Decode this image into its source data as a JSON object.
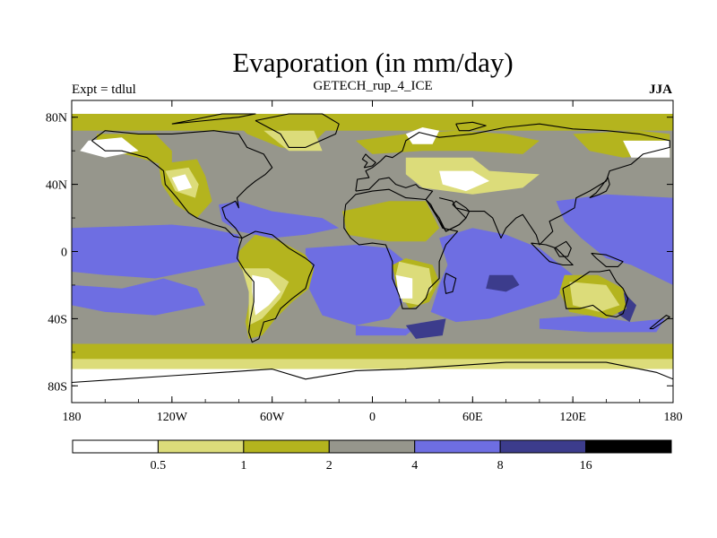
{
  "chart_data": {
    "type": "heatmap",
    "title": "Evaporation (in mm/day)",
    "subtitle": "GETECH_rup_4_ICE",
    "left_label": "Expt = tdlul",
    "right_label": "JJA",
    "xlim": [
      -180,
      180
    ],
    "ylim": [
      -90,
      90
    ],
    "x_ticks": [
      {
        "value": -180,
        "label": "180"
      },
      {
        "value": -120,
        "label": "120W"
      },
      {
        "value": -60,
        "label": "60W"
      },
      {
        "value": 0,
        "label": "0"
      },
      {
        "value": 60,
        "label": "60E"
      },
      {
        "value": 120,
        "label": "120E"
      },
      {
        "value": 180,
        "label": "180"
      }
    ],
    "y_ticks": [
      {
        "value": 80,
        "label": "80N"
      },
      {
        "value": 40,
        "label": "40N"
      },
      {
        "value": 0,
        "label": "0"
      },
      {
        "value": -40,
        "label": "40S"
      },
      {
        "value": -80,
        "label": "80S"
      }
    ],
    "colorbar": {
      "levels": [
        "0.5",
        "1",
        "2",
        "4",
        "8",
        "16"
      ],
      "colors": [
        "#ffffff",
        "#dcdc7a",
        "#b4b41e",
        "#96968c",
        "#6e6ee2",
        "#3c3c8c",
        "#000000"
      ]
    },
    "palette": {
      "white": "#ffffff",
      "pale": "#dcdc7a",
      "olive": "#b4b41e",
      "gray": "#96968c",
      "blue": "#6e6ee2",
      "navy": "#3c3c8c"
    }
  }
}
